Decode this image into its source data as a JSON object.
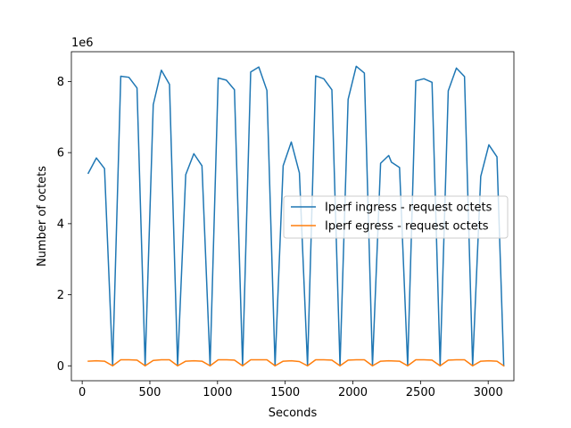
{
  "chart_data": {
    "type": "line",
    "xlabel": "Seconds",
    "ylabel": "Number of octets",
    "offset_text": "1e6",
    "xlim": [
      -80,
      3190
    ],
    "ylim": [
      -0.42,
      8.84
    ],
    "ylim_scale": 1000000,
    "xticks": [
      0,
      500,
      1000,
      1500,
      2000,
      2500,
      3000
    ],
    "yticks": [
      0,
      2,
      4,
      6,
      8
    ],
    "legend": {
      "placement": "center-right"
    },
    "grid": false,
    "series": [
      {
        "name": "Iperf ingress - request octets",
        "color": "#1f77b4",
        "x": [
          45,
          105,
          165,
          225,
          285,
          345,
          405,
          465,
          525,
          585,
          645,
          705,
          765,
          825,
          885,
          945,
          1005,
          1065,
          1125,
          1185,
          1245,
          1305,
          1365,
          1425,
          1485,
          1545,
          1605,
          1665,
          1725,
          1785,
          1845,
          1905,
          1965,
          2025,
          2085,
          2145,
          2205,
          2265,
          2285,
          2345,
          2405,
          2465,
          2525,
          2585,
          2645,
          2705,
          2765,
          2825,
          2885,
          2945,
          3005,
          3065,
          3115
        ],
        "y": [
          5.42,
          5.85,
          5.55,
          0.0,
          8.15,
          8.12,
          7.82,
          0.0,
          7.35,
          8.32,
          7.92,
          0.0,
          5.38,
          5.97,
          5.63,
          0.0,
          8.1,
          8.04,
          7.77,
          0.0,
          8.27,
          8.41,
          7.75,
          0.0,
          5.63,
          6.3,
          5.43,
          0.0,
          8.16,
          8.08,
          7.77,
          0.0,
          7.5,
          8.43,
          8.24,
          0.0,
          5.7,
          5.92,
          5.73,
          5.58,
          0.0,
          8.02,
          8.08,
          7.98,
          0.0,
          7.74,
          8.38,
          8.14,
          0.0,
          5.33,
          6.22,
          5.88,
          0.0
        ]
      },
      {
        "name": "Iperf egress - request octets",
        "color": "#ff7f0e",
        "x": [
          45,
          105,
          165,
          225,
          285,
          345,
          405,
          465,
          525,
          585,
          645,
          705,
          765,
          825,
          885,
          945,
          1005,
          1065,
          1125,
          1185,
          1245,
          1305,
          1365,
          1425,
          1485,
          1545,
          1605,
          1665,
          1725,
          1785,
          1845,
          1905,
          1965,
          2025,
          2085,
          2145,
          2205,
          2265,
          2345,
          2405,
          2465,
          2525,
          2585,
          2645,
          2705,
          2765,
          2825,
          2885,
          2945,
          3005,
          3065,
          3115
        ],
        "y": [
          0.13,
          0.14,
          0.13,
          0.0,
          0.17,
          0.17,
          0.16,
          0.0,
          0.15,
          0.17,
          0.17,
          0.0,
          0.13,
          0.14,
          0.13,
          0.0,
          0.17,
          0.17,
          0.16,
          0.0,
          0.17,
          0.17,
          0.17,
          0.0,
          0.13,
          0.14,
          0.12,
          0.0,
          0.17,
          0.17,
          0.16,
          0.0,
          0.16,
          0.17,
          0.17,
          0.0,
          0.13,
          0.14,
          0.13,
          0.0,
          0.17,
          0.17,
          0.16,
          0.0,
          0.16,
          0.17,
          0.17,
          0.0,
          0.13,
          0.14,
          0.13,
          0.0
        ]
      }
    ]
  }
}
